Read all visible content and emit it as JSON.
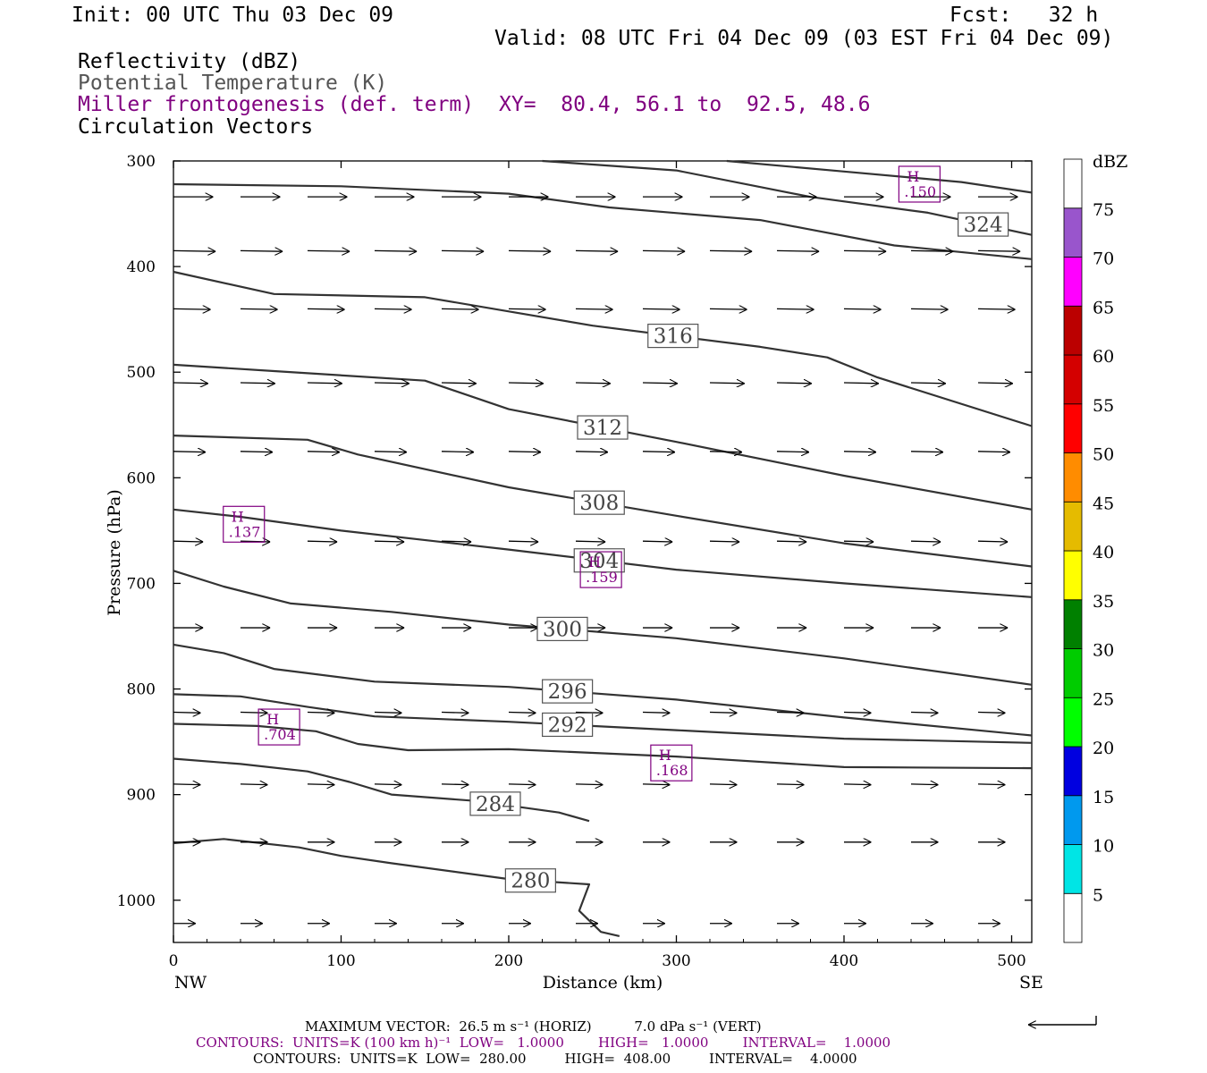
{
  "header": {
    "init": "Init: 00 UTC Thu 03 Dec 09",
    "fcst": "Fcst:   32 h",
    "valid": "Valid: 08 UTC Fri 04 Dec 09 (03 EST Fri 04 Dec 09)",
    "field1": "Reflectivity (dBZ)",
    "field2": "Potential Temperature (K)",
    "field3": "Miller frontogenesis (def. term)",
    "xy": "XY=  80.4, 56.1 to  92.5, 48.6",
    "field4": "Circulation Vectors"
  },
  "colorbar": {
    "unit": "dBZ",
    "levels": [
      "5",
      "10",
      "15",
      "20",
      "25",
      "30",
      "35",
      "40",
      "45",
      "50",
      "55",
      "60",
      "65",
      "70",
      "75"
    ],
    "colors": [
      "#ffffff",
      "#00e5e5",
      "#0099ee",
      "#0000e0",
      "#00ff00",
      "#00cc00",
      "#008000",
      "#ffff00",
      "#e5bb00",
      "#ff8c00",
      "#ff0000",
      "#d40000",
      "#bb0000",
      "#ff00ff",
      "#9955cc",
      "#ffffff"
    ]
  },
  "chart_data": {
    "type": "contour",
    "xlabel": "Distance (km)",
    "ylabel": "Pressure (hPa)",
    "xlim": [
      0,
      512
    ],
    "ylim": [
      1040,
      300
    ],
    "x_ticks": [
      0,
      100,
      200,
      300,
      400,
      500
    ],
    "y_ticks": [
      300,
      400,
      500,
      600,
      700,
      800,
      900,
      1000
    ],
    "x_end_labels": {
      "left": "NW",
      "right": "SE"
    },
    "theta_contours": [
      {
        "value": 280,
        "label": "280",
        "points": [
          [
            0,
            946
          ],
          [
            30,
            942
          ],
          [
            75,
            950
          ],
          [
            100,
            958
          ],
          [
            130,
            965
          ],
          [
            200,
            980
          ],
          [
            248,
            985
          ],
          [
            242,
            1010
          ],
          [
            255,
            1030
          ],
          [
            266,
            1034
          ]
        ]
      },
      {
        "value": 284,
        "label": "284",
        "points": [
          [
            0,
            866
          ],
          [
            40,
            871
          ],
          [
            80,
            878
          ],
          [
            105,
            888
          ],
          [
            130,
            900
          ],
          [
            180,
            906
          ],
          [
            230,
            917
          ],
          [
            248,
            925
          ]
        ]
      },
      {
        "value": 288,
        "label": "",
        "points": [
          [
            0,
            833
          ],
          [
            50,
            835
          ],
          [
            85,
            840
          ],
          [
            110,
            852
          ],
          [
            140,
            858
          ],
          [
            200,
            857
          ],
          [
            300,
            864
          ],
          [
            400,
            874
          ],
          [
            512,
            875
          ]
        ]
      },
      {
        "value": 292,
        "label": "292",
        "points": [
          [
            0,
            805
          ],
          [
            40,
            807
          ],
          [
            80,
            817
          ],
          [
            120,
            826
          ],
          [
            200,
            831
          ],
          [
            300,
            839
          ],
          [
            400,
            847
          ],
          [
            512,
            851
          ]
        ]
      },
      {
        "value": 296,
        "label": "296",
        "points": [
          [
            0,
            758
          ],
          [
            30,
            766
          ],
          [
            60,
            781
          ],
          [
            120,
            793
          ],
          [
            200,
            798
          ],
          [
            300,
            810
          ],
          [
            400,
            827
          ],
          [
            512,
            844
          ]
        ]
      },
      {
        "value": 300,
        "label": "300",
        "points": [
          [
            0,
            688
          ],
          [
            30,
            703
          ],
          [
            70,
            719
          ],
          [
            130,
            727
          ],
          [
            200,
            739
          ],
          [
            300,
            752
          ],
          [
            400,
            771
          ],
          [
            512,
            796
          ]
        ]
      },
      {
        "value": 304,
        "label": "304",
        "points": [
          [
            0,
            630
          ],
          [
            40,
            637
          ],
          [
            100,
            650
          ],
          [
            200,
            668
          ],
          [
            300,
            687
          ],
          [
            400,
            700
          ],
          [
            512,
            713
          ]
        ]
      },
      {
        "value": 308,
        "label": "308",
        "points": [
          [
            0,
            560
          ],
          [
            80,
            564
          ],
          [
            110,
            578
          ],
          [
            200,
            609
          ],
          [
            300,
            636
          ],
          [
            400,
            662
          ],
          [
            512,
            684
          ]
        ]
      },
      {
        "value": 312,
        "label": "312",
        "points": [
          [
            0,
            493
          ],
          [
            60,
            499
          ],
          [
            150,
            508
          ],
          [
            200,
            535
          ],
          [
            300,
            566
          ],
          [
            400,
            598
          ],
          [
            512,
            630
          ]
        ]
      },
      {
        "value": 316,
        "label": "316",
        "points": [
          [
            0,
            405
          ],
          [
            60,
            426
          ],
          [
            150,
            429
          ],
          [
            250,
            456
          ],
          [
            350,
            476
          ],
          [
            390,
            486
          ],
          [
            420,
            505
          ],
          [
            512,
            551
          ]
        ]
      },
      {
        "value": 320,
        "label": "",
        "points": [
          [
            0,
            322
          ],
          [
            100,
            324
          ],
          [
            200,
            331
          ],
          [
            260,
            344
          ],
          [
            350,
            356
          ],
          [
            430,
            380
          ],
          [
            512,
            393
          ]
        ]
      },
      {
        "value": 324,
        "label": "324",
        "points": [
          [
            220,
            300
          ],
          [
            300,
            309
          ],
          [
            380,
            334
          ],
          [
            450,
            349
          ],
          [
            512,
            370
          ]
        ]
      },
      {
        "value": 328,
        "label": "",
        "points": [
          [
            330,
            300
          ],
          [
            400,
            310
          ],
          [
            470,
            320
          ],
          [
            512,
            330
          ]
        ]
      }
    ],
    "frontogenesis_maxima": [
      {
        "label": "H",
        "value": ".150",
        "x": 445,
        "p": 322
      },
      {
        "label": "H",
        "value": ".137",
        "x": 42,
        "p": 644
      },
      {
        "label": "H",
        "value": ".159",
        "x": 255,
        "p": 687
      },
      {
        "label": "H",
        "value": ".704",
        "x": 63,
        "p": 836
      },
      {
        "label": "H",
        "value": ".168",
        "x": 297,
        "p": 870
      }
    ],
    "vector_rows": [
      {
        "p": 334,
        "dx": 1.3,
        "dy": 0.0
      },
      {
        "p": 385,
        "dx": 1.4,
        "dy": 0.1
      },
      {
        "p": 440,
        "dx": 1.2,
        "dy": 0.1
      },
      {
        "p": 510,
        "dx": 1.1,
        "dy": 0.1
      },
      {
        "p": 575,
        "dx": 1.0,
        "dy": 0.1
      },
      {
        "p": 660,
        "dx": 0.9,
        "dy": 0.1
      },
      {
        "p": 742,
        "dx": 0.9,
        "dy": 0.0
      },
      {
        "p": 822,
        "dx": 0.8,
        "dy": 0.1
      },
      {
        "p": 890,
        "dx": 0.8,
        "dy": 0.1
      },
      {
        "p": 945,
        "dx": 0.8,
        "dy": 0.0
      },
      {
        "p": 1022,
        "dx": 0.6,
        "dy": 0.0
      }
    ]
  },
  "footer": {
    "max_vector": "MAXIMUM VECTOR:  26.5 m s⁻¹ (HORIZ)          7.0 dPa s⁻¹ (VERT)",
    "contours_purple": "CONTOURS:  UNITS=K (100 km h)⁻¹  LOW=   1.0000        HIGH=   1.0000        INTERVAL=    1.0000",
    "contours_black": "CONTOURS:  UNITS=K  LOW=  280.00         HIGH=  408.00         INTERVAL=    4.0000"
  }
}
